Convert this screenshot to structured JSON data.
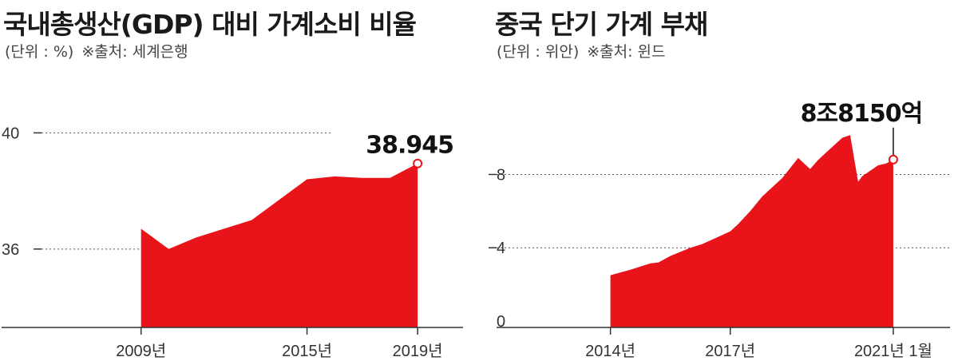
{
  "left": {
    "title": "국내총생산(GDP) 대비 가계소비 비율",
    "unit": "(단위 : %)",
    "source": "※출처: 세계은행",
    "chart_data": {
      "type": "area",
      "x": [
        2009,
        2010,
        2011,
        2012,
        2013,
        2014,
        2015,
        2016,
        2017,
        2018,
        2019
      ],
      "values": [
        36.7,
        36.0,
        36.4,
        36.7,
        37.0,
        37.7,
        38.4,
        38.5,
        38.45,
        38.45,
        38.945
      ],
      "xticks": [
        "2009년",
        "2015년",
        "2019년"
      ],
      "xtick_values": [
        2009,
        2015,
        2019
      ],
      "yticks": [
        "40",
        "36"
      ],
      "ytick_values": [
        40,
        36
      ],
      "ylim": [
        33.3,
        42.1
      ],
      "xlim": [
        2005.4,
        2020.7
      ],
      "last_label": "38.945",
      "color": "#e8141a",
      "grid": "dotted horizontal at y ticks"
    }
  },
  "right": {
    "title": "중국 단기 가계 부채",
    "unit": "(단위 : 위안)",
    "source": "※출처: 윈드",
    "chart_data": {
      "type": "area",
      "x": [
        2014.0,
        2014.5,
        2015.0,
        2015.2,
        2015.5,
        2016.0,
        2016.3,
        2016.7,
        2017.0,
        2017.2,
        2017.5,
        2017.8,
        2018.0,
        2018.3,
        2018.7,
        2019.0,
        2019.2,
        2019.4,
        2019.6,
        2019.8,
        2020.0,
        2020.2,
        2020.3,
        2020.5,
        2020.7,
        2020.9,
        2021.08
      ],
      "values": [
        2.5,
        2.8,
        3.15,
        3.2,
        3.55,
        4.0,
        4.2,
        4.6,
        4.9,
        5.3,
        6.0,
        6.8,
        7.2,
        7.8,
        8.9,
        8.3,
        8.8,
        9.2,
        9.6,
        10.0,
        10.15,
        7.6,
        7.9,
        8.2,
        8.5,
        8.6,
        8.815
      ],
      "xticks": [
        "2014년",
        "2017년",
        "2021년 1월"
      ],
      "xtick_values": [
        2014.0,
        2017.0,
        2021.08
      ],
      "yticks": [
        "8",
        "4",
        "0"
      ],
      "ytick_values": [
        8,
        4,
        0
      ],
      "ylim": [
        -0.35,
        13.6
      ],
      "xlim": [
        2011.15,
        2022.5
      ],
      "last_label": "8조8150억",
      "color": "#e8141a",
      "grid": "dotted horizontal at y ticks"
    }
  }
}
